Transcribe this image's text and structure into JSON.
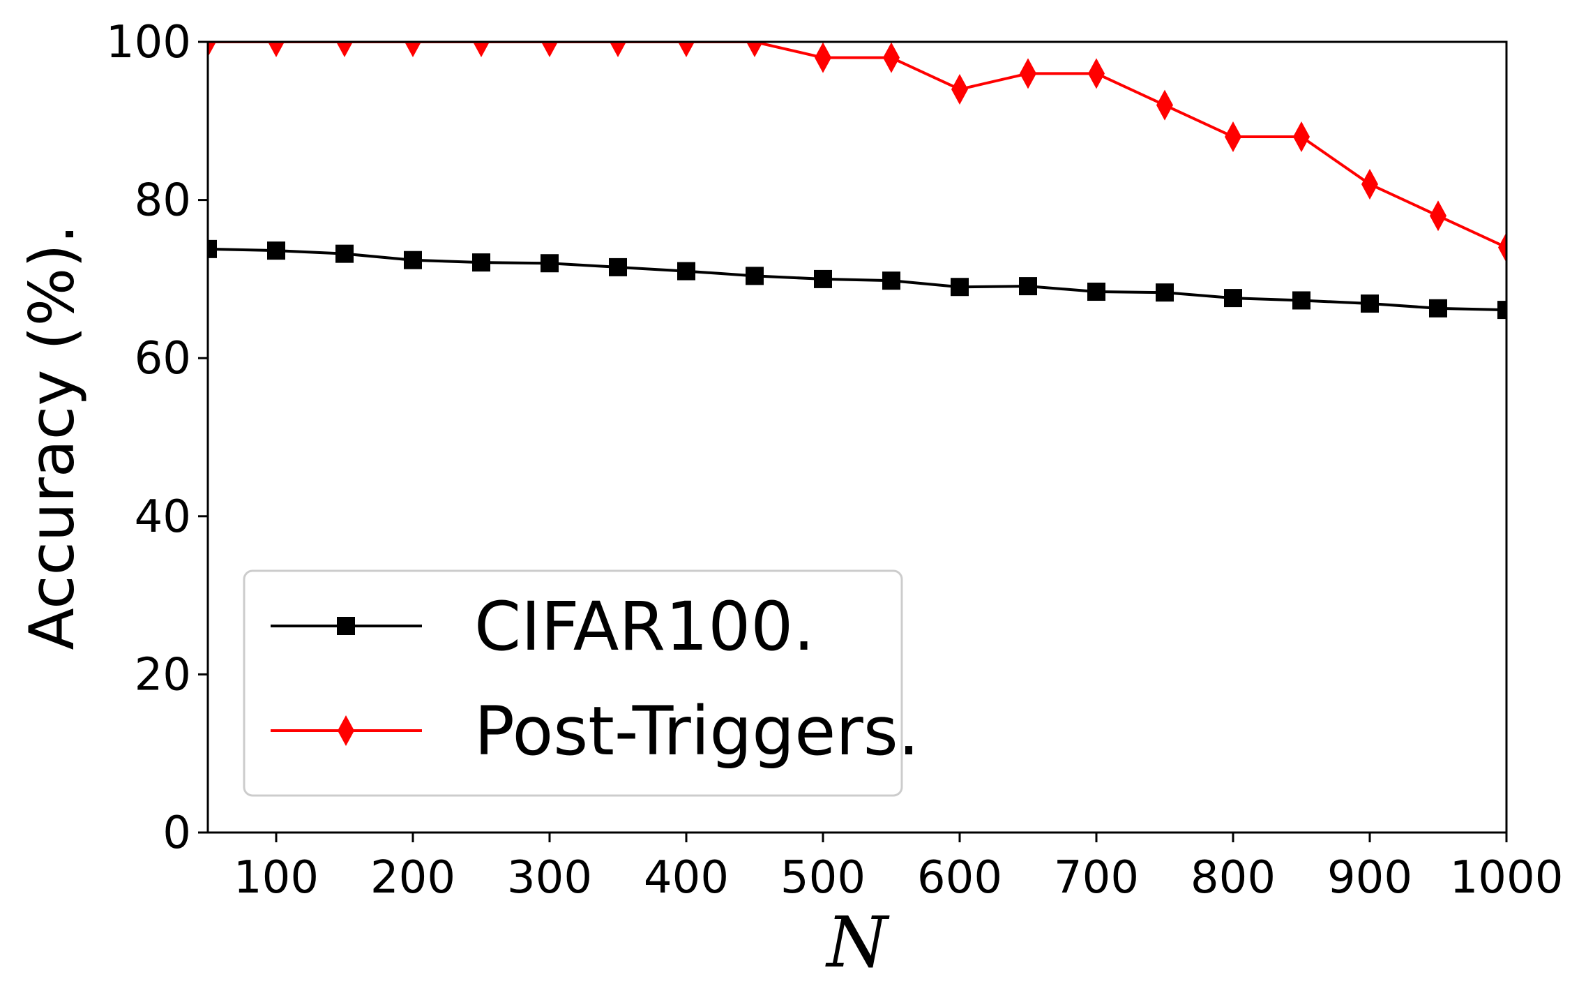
{
  "chart_data": {
    "type": "line",
    "title": "",
    "xlabel": "N",
    "ylabel": "Accuracy (%).",
    "xlim": [
      50,
      1000
    ],
    "ylim": [
      0,
      100
    ],
    "xticks": [
      100,
      200,
      300,
      400,
      500,
      600,
      700,
      800,
      900,
      1000
    ],
    "yticks": [
      0,
      20,
      40,
      60,
      80,
      100
    ],
    "grid": false,
    "legend_position": "lower-left",
    "x": [
      50,
      100,
      150,
      200,
      250,
      300,
      350,
      400,
      450,
      500,
      550,
      600,
      650,
      700,
      750,
      800,
      850,
      900,
      950,
      1000
    ],
    "series": [
      {
        "name": "CIFAR100.",
        "color": "#000000",
        "marker": "square",
        "values": [
          73.8,
          73.6,
          73.2,
          72.4,
          72.1,
          72.0,
          71.5,
          71.0,
          70.4,
          70.0,
          69.8,
          69.0,
          69.1,
          68.4,
          68.3,
          67.6,
          67.3,
          66.9,
          66.3,
          66.1
        ]
      },
      {
        "name": "Post-Triggers.",
        "color": "#ff0000",
        "marker": "diamond",
        "values": [
          100,
          100,
          100,
          100,
          100,
          100,
          100,
          100,
          100,
          98,
          98,
          94,
          96,
          96,
          92,
          88,
          88,
          82,
          78,
          74
        ]
      }
    ]
  }
}
